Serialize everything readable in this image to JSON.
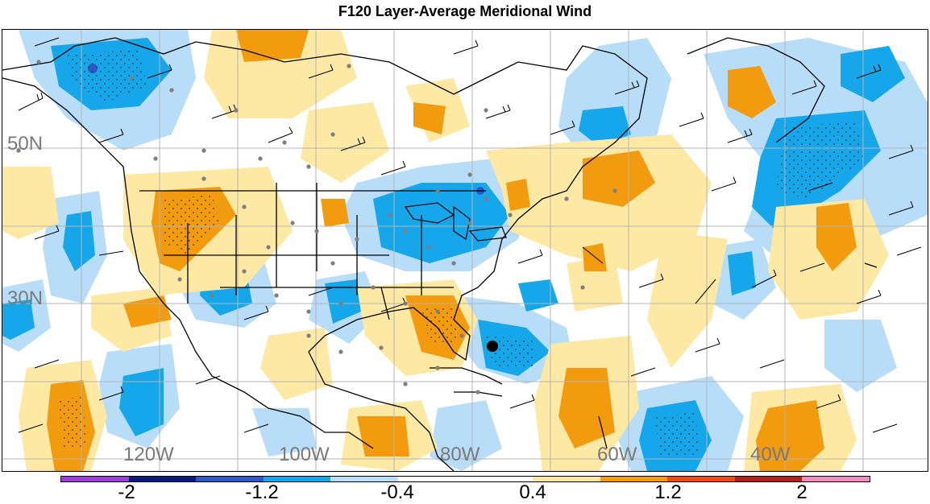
{
  "title": "F120 Layer-Average Meridional Wind",
  "map": {
    "lat_labels": [
      "50N",
      "30N"
    ],
    "lon_labels": [
      "120W",
      "100W",
      "80W",
      "60W",
      "40W"
    ]
  },
  "colorbar": {
    "colors": [
      "#9c3fd6",
      "#0b1c80",
      "#2f57c7",
      "#16a7ea",
      "#b7ddf8",
      "#ffffff",
      "#ffffff",
      "#fde9a3",
      "#f39b0e",
      "#ec4c12",
      "#b41e1e",
      "#f28bbf"
    ],
    "labels": [
      "-2",
      "-1.2",
      "-0.4",
      "0.4",
      "1.2",
      "2"
    ]
  }
}
